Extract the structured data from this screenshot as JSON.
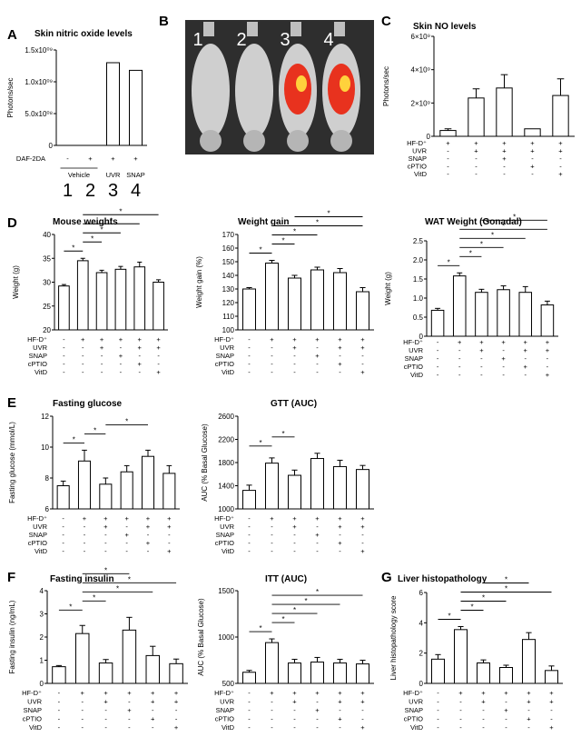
{
  "panel_labels": [
    "A",
    "B",
    "C",
    "D",
    "E",
    "F",
    "G"
  ],
  "sig_symbol": "*",
  "photo": {
    "numbers": [
      "1",
      "2",
      "3",
      "4"
    ],
    "colors": {
      "bg": "#2e2e2e",
      "mouse": "#cfcfcf",
      "signal": "#e8321e",
      "hot": "#ffd23c"
    }
  },
  "groupA": {
    "row_label": "DAF-2DA",
    "row_values": [
      "-",
      "+",
      "+",
      "+"
    ],
    "vehicle": "Vehicle",
    "names": [
      "",
      "",
      "UVR",
      "SNAP"
    ],
    "numbers": [
      "1",
      "2",
      "3",
      "4"
    ]
  },
  "treatment_rows": {
    "labels": [
      "HF-D⁺",
      "UVR",
      "SNAP",
      "cPTIO",
      "VitD"
    ],
    "six": [
      [
        "-",
        "+",
        "+",
        "+",
        "+",
        "+"
      ],
      [
        "-",
        "-",
        "+",
        "-",
        "+",
        "+"
      ],
      [
        "-",
        "-",
        "-",
        "+",
        "-",
        "-"
      ],
      [
        "-",
        "-",
        "-",
        "-",
        "+",
        "-"
      ],
      [
        "-",
        "-",
        "-",
        "-",
        "-",
        "+"
      ]
    ],
    "five": [
      [
        "+",
        "+",
        "+",
        "+",
        "+"
      ],
      [
        "-",
        "+",
        "+",
        "+",
        "+"
      ],
      [
        "-",
        "-",
        "+",
        "-",
        "-"
      ],
      [
        "-",
        "-",
        "-",
        "+",
        "-"
      ],
      [
        "-",
        "-",
        "-",
        "-",
        "+"
      ]
    ]
  },
  "chart_data": [
    {
      "id": "A",
      "type": "bar",
      "title": "Skin nitric oxide levels",
      "ylabel": "Photons/sec",
      "ylim": [
        0,
        1500000000
      ],
      "yticks": [
        "0",
        "5.0x10⁰⁸",
        "1.0x10⁰⁹",
        "1.5x10⁰⁹"
      ],
      "categories": [
        "1",
        "2",
        "3",
        "4"
      ],
      "values": [
        0,
        0,
        1300000000,
        1180000000
      ],
      "errors": [
        0,
        0,
        0,
        0
      ],
      "sig": []
    },
    {
      "id": "C",
      "type": "bar",
      "title": "Skin NO levels",
      "ylabel": "Photons/sec",
      "ylim": [
        0,
        6000000000
      ],
      "yticks": [
        "0",
        "2×10⁹",
        "4×10⁹",
        "6×10⁹"
      ],
      "categories": [
        "1",
        "2",
        "3",
        "4",
        "5"
      ],
      "values": [
        350000000,
        2300000000,
        2900000000,
        450000000,
        2450000000
      ],
      "errors": [
        100000000,
        550000000,
        800000000,
        0,
        1000000000
      ],
      "sig": []
    },
    {
      "id": "D1",
      "type": "bar",
      "title": "Mouse weights",
      "ylabel": "Weight (g)",
      "ylim": [
        20,
        40
      ],
      "yticks": [
        "20",
        "25",
        "30",
        "35",
        "40"
      ],
      "categories": [
        "1",
        "2",
        "3",
        "4",
        "5",
        "6"
      ],
      "values": [
        29.2,
        34.5,
        32,
        32.7,
        33.2,
        30
      ],
      "errors": [
        0.3,
        0.5,
        0.5,
        0.6,
        1,
        0.5
      ],
      "sig": [
        [
          0,
          1
        ],
        [
          1,
          2
        ],
        [
          1,
          3
        ],
        [
          1,
          4
        ],
        [
          1,
          5
        ]
      ]
    },
    {
      "id": "D2",
      "type": "bar",
      "title": "Weight gain",
      "ylabel": "Weight gain (%)",
      "ylim": [
        100,
        170
      ],
      "yticks": [
        "100",
        "110",
        "120",
        "130",
        "140",
        "150",
        "160",
        "170"
      ],
      "categories": [
        "1",
        "2",
        "3",
        "4",
        "5",
        "6"
      ],
      "values": [
        130,
        149,
        138,
        144,
        142,
        128
      ],
      "errors": [
        1,
        2,
        2,
        2,
        3,
        3
      ],
      "sig": [
        [
          0,
          1
        ],
        [
          1,
          2
        ],
        [
          1,
          3
        ],
        [
          1,
          5
        ],
        [
          2,
          5
        ]
      ]
    },
    {
      "id": "D3",
      "type": "bar",
      "title": "WAT Weight (Gonadal)",
      "ylabel": "Weight (g)",
      "ylim": [
        0,
        2.5
      ],
      "yticks": [
        "0",
        "0.5",
        "1.0",
        "1.5",
        "2.0",
        "2.5"
      ],
      "categories": [
        "1",
        "2",
        "3",
        "4",
        "5",
        "6"
      ],
      "values": [
        0.68,
        1.58,
        1.15,
        1.22,
        1.15,
        0.82
      ],
      "errors": [
        0.05,
        0.08,
        0.08,
        0.1,
        0.15,
        0.1
      ],
      "sig": [
        [
          0,
          1
        ],
        [
          1,
          2
        ],
        [
          1,
          3
        ],
        [
          1,
          4
        ],
        [
          1,
          5
        ],
        [
          2,
          5
        ]
      ]
    },
    {
      "id": "E1",
      "type": "bar",
      "title": "Fasting glucose",
      "ylabel": "Fasting glucose (mmol/L)",
      "ylim": [
        6,
        12
      ],
      "yticks": [
        "6",
        "8",
        "10",
        "12"
      ],
      "categories": [
        "1",
        "2",
        "3",
        "4",
        "5",
        "6"
      ],
      "values": [
        7.5,
        9.1,
        7.6,
        8.4,
        9.4,
        8.3
      ],
      "errors": [
        0.3,
        0.7,
        0.4,
        0.4,
        0.4,
        0.5
      ],
      "sig": [
        [
          0,
          1
        ],
        [
          1,
          2
        ],
        [
          2,
          4
        ]
      ]
    },
    {
      "id": "E2",
      "type": "bar",
      "title": "GTT (AUC)",
      "ylabel": "AUC (% Basal Glucose)",
      "ylim": [
        1000,
        2600
      ],
      "yticks": [
        "1000",
        "1400",
        "1800",
        "2200",
        "2600"
      ],
      "categories": [
        "1",
        "2",
        "3",
        "4",
        "5",
        "6"
      ],
      "values": [
        1320,
        1790,
        1580,
        1870,
        1730,
        1680
      ],
      "errors": [
        90,
        90,
        90,
        90,
        110,
        70
      ],
      "sig": [
        [
          0,
          1
        ],
        [
          1,
          2
        ]
      ]
    },
    {
      "id": "F1",
      "type": "bar",
      "title": "Fasting insulin",
      "ylabel": "Fasting insulin (ng/mL)",
      "ylim": [
        0,
        4
      ],
      "yticks": [
        "0",
        "1",
        "2",
        "3",
        "4"
      ],
      "categories": [
        "1",
        "2",
        "3",
        "4",
        "5",
        "6"
      ],
      "values": [
        0.72,
        2.15,
        0.88,
        2.3,
        1.2,
        0.85
      ],
      "errors": [
        0.05,
        0.35,
        0.15,
        0.55,
        0.4,
        0.2
      ],
      "sig": [
        [
          0,
          1
        ],
        [
          1,
          2
        ],
        [
          1,
          4
        ],
        [
          1,
          5
        ],
        [
          1,
          3
        ]
      ]
    },
    {
      "id": "F2",
      "type": "bar",
      "title": "ITT (AUC)",
      "ylabel": "AUC (% Basal Glucose)",
      "ylim": [
        500,
        1500
      ],
      "yticks": [
        "500",
        "1000",
        "1500"
      ],
      "categories": [
        "1",
        "2",
        "3",
        "4",
        "5",
        "6"
      ],
      "values": [
        620,
        940,
        720,
        730,
        720,
        710
      ],
      "errors": [
        20,
        40,
        40,
        50,
        40,
        40
      ],
      "sig": [
        [
          0,
          1
        ],
        [
          1,
          2
        ],
        [
          1,
          3
        ],
        [
          1,
          4
        ],
        [
          1,
          5
        ]
      ]
    },
    {
      "id": "G",
      "type": "bar",
      "title": "Liver histopathology",
      "ylabel": "Liver histopathology score",
      "ylim": [
        0,
        6
      ],
      "yticks": [
        "0",
        "2",
        "4",
        "6"
      ],
      "categories": [
        "1",
        "2",
        "3",
        "4",
        "5",
        "6"
      ],
      "values": [
        1.6,
        3.55,
        1.35,
        1.05,
        2.9,
        0.85
      ],
      "errors": [
        0.3,
        0.2,
        0.2,
        0.15,
        0.45,
        0.3
      ],
      "sig": [
        [
          0,
          1
        ],
        [
          1,
          2
        ],
        [
          1,
          3
        ],
        [
          1,
          5
        ],
        [
          2,
          4
        ]
      ]
    }
  ]
}
